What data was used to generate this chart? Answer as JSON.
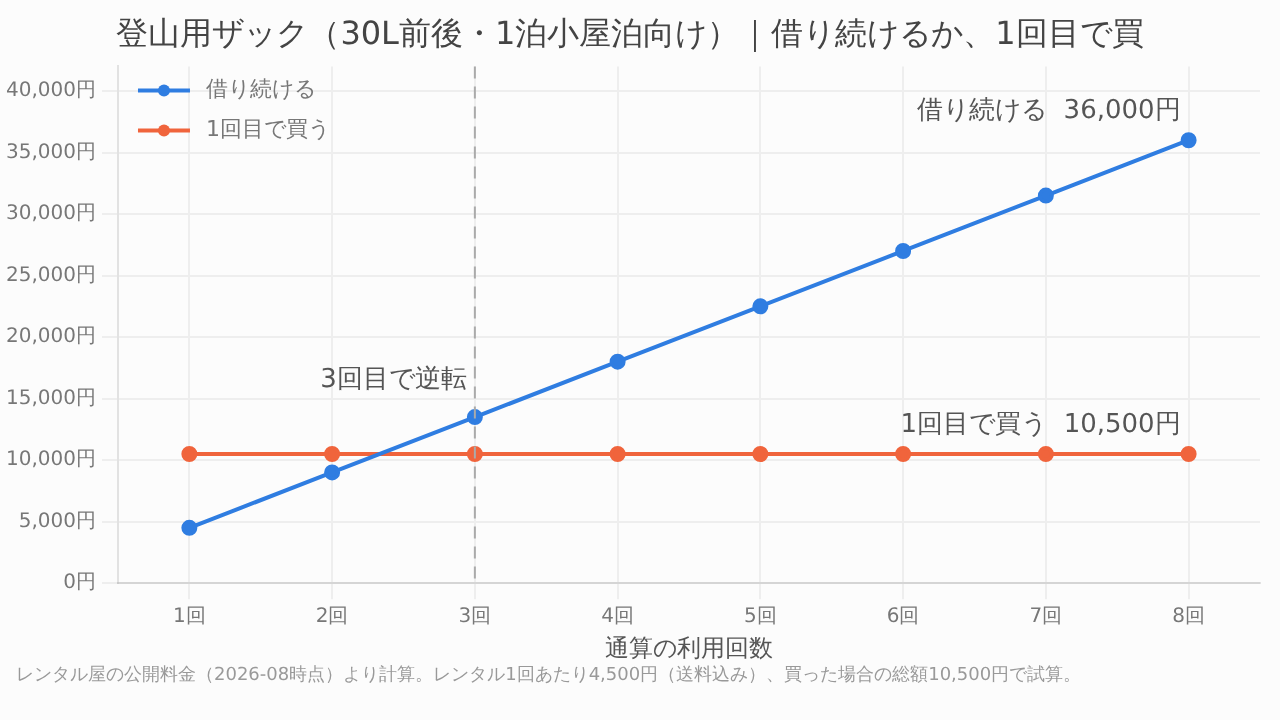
{
  "chart_data": {
    "type": "line",
    "title": "登山用ザック（30L前後・1泊小屋泊向け）｜借り続けるか、1回目で買",
    "xlabel": "通算の利用回数",
    "categories": [
      "1回",
      "2回",
      "3回",
      "4回",
      "5回",
      "6回",
      "7回",
      "8回"
    ],
    "series": [
      {
        "name": "借り続ける",
        "color": "#2f7de1",
        "values": [
          4500,
          9000,
          13500,
          18000,
          22500,
          27000,
          31500,
          36000
        ]
      },
      {
        "name": "1回目で買う",
        "color": "#f0643c",
        "values": [
          10500,
          10500,
          10500,
          10500,
          10500,
          10500,
          10500,
          10500
        ]
      }
    ],
    "ylim": [
      0,
      42000
    ],
    "yticks": [
      {
        "value": 0,
        "label": "0円"
      },
      {
        "value": 5000,
        "label": "5,000円"
      },
      {
        "value": 10000,
        "label": "10,000円"
      },
      {
        "value": 15000,
        "label": "15,000円"
      },
      {
        "value": 20000,
        "label": "20,000円"
      },
      {
        "value": 25000,
        "label": "25,000円"
      },
      {
        "value": 30000,
        "label": "30,000円"
      },
      {
        "value": 35000,
        "label": "35,000円"
      },
      {
        "value": 40000,
        "label": "40,000円"
      }
    ],
    "ref_lines": [
      {
        "axis": "x",
        "value": "3回",
        "color": "#aaaaaa",
        "line_style": "dashed"
      }
    ],
    "annotations": [
      {
        "text": "3回目で逆転",
        "x": "3回",
        "y": 13500
      },
      {
        "text": "借り続ける  36,000円",
        "x": "8回",
        "y": 36000
      },
      {
        "text": "1回目で買う  10,500円",
        "x": "8回",
        "y": 10500
      },
      "レンタル屋の公開料金（2026-08時点）より計算。レンタル1回あたり4,500円（送料込み）、買った場合の総額10,500円で試算。"
    ],
    "grid": true,
    "legend": "top left",
    "marker": "circle",
    "line_style": "solid"
  }
}
